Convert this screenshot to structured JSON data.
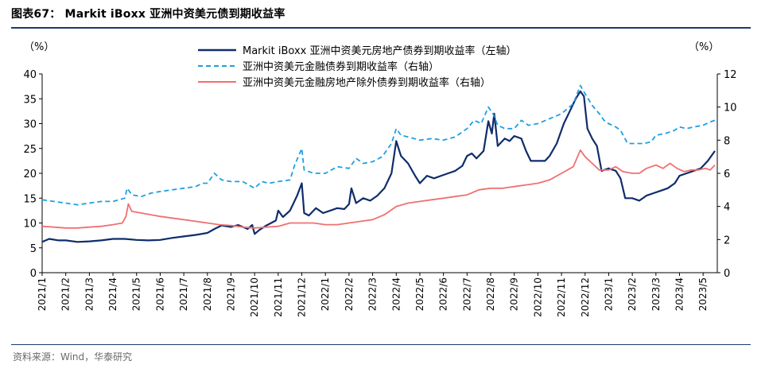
{
  "title": "图表67： Markit iBoxx 亚洲中资美元债到期收益率",
  "source": "资料来源：Wind，华泰研究",
  "chart_data": {
    "type": "line",
    "title": "图表67： Markit iBoxx 亚洲中资美元债到期收益率",
    "left_axis": {
      "unit": "（%）",
      "min": 0,
      "max": 40,
      "ticks": [
        "0",
        "5",
        "10",
        "15",
        "20",
        "25",
        "30",
        "35",
        "40"
      ]
    },
    "right_axis": {
      "unit": "（%）",
      "min": 0,
      "max": 12,
      "ticks": [
        "0",
        "2",
        "4",
        "6",
        "8",
        "10",
        "12"
      ]
    },
    "x_labels": [
      "2021/1",
      "2021/2",
      "2021/3",
      "2021/4",
      "2021/5",
      "2021/6",
      "2021/7",
      "2021/8",
      "2021/9",
      "2021/10",
      "2021/11",
      "2021/12",
      "2022/1",
      "2022/2",
      "2022/3",
      "2022/4",
      "2022/5",
      "2022/6",
      "2022/7",
      "2022/8",
      "2022/9",
      "2022/10",
      "2022/11",
      "2022/12",
      "2023/1",
      "2023/2",
      "2023/3",
      "2023/4",
      "2023/5"
    ],
    "x_range": [
      0,
      28.6
    ],
    "legend_position": "top",
    "series": [
      {
        "name": "Markit iBoxx 亚洲中资美元房地产债券到期收益率（左轴）",
        "axis": "left",
        "color": "#0f2d6b",
        "style": "solid",
        "points": [
          [
            0,
            6.2
          ],
          [
            0.3,
            6.8
          ],
          [
            0.7,
            6.5
          ],
          [
            1,
            6.5
          ],
          [
            1.5,
            6.2
          ],
          [
            2,
            6.3
          ],
          [
            2.5,
            6.5
          ],
          [
            3,
            6.8
          ],
          [
            3.5,
            6.8
          ],
          [
            4,
            6.6
          ],
          [
            4.5,
            6.5
          ],
          [
            5,
            6.6
          ],
          [
            5.5,
            7.0
          ],
          [
            6,
            7.3
          ],
          [
            6.5,
            7.6
          ],
          [
            7,
            8.0
          ],
          [
            7.3,
            8.8
          ],
          [
            7.6,
            9.5
          ],
          [
            8,
            9.2
          ],
          [
            8.3,
            9.6
          ],
          [
            8.7,
            8.8
          ],
          [
            8.9,
            9.6
          ],
          [
            9.0,
            7.8
          ],
          [
            9.2,
            8.6
          ],
          [
            9.5,
            9.5
          ],
          [
            9.9,
            10.5
          ],
          [
            10.0,
            12.5
          ],
          [
            10.2,
            11.2
          ],
          [
            10.5,
            12.5
          ],
          [
            10.8,
            15.5
          ],
          [
            11.0,
            18.0
          ],
          [
            11.1,
            12.0
          ],
          [
            11.3,
            11.5
          ],
          [
            11.6,
            13.0
          ],
          [
            11.9,
            12.0
          ],
          [
            12.2,
            12.5
          ],
          [
            12.5,
            13.0
          ],
          [
            12.8,
            12.8
          ],
          [
            13.0,
            13.8
          ],
          [
            13.1,
            17.0
          ],
          [
            13.3,
            14.0
          ],
          [
            13.6,
            15.0
          ],
          [
            13.9,
            14.5
          ],
          [
            14.2,
            15.5
          ],
          [
            14.5,
            17.0
          ],
          [
            14.8,
            20.0
          ],
          [
            15.0,
            26.5
          ],
          [
            15.2,
            23.5
          ],
          [
            15.5,
            22.0
          ],
          [
            15.8,
            19.5
          ],
          [
            16.0,
            18.0
          ],
          [
            16.3,
            19.5
          ],
          [
            16.6,
            19.0
          ],
          [
            16.9,
            19.5
          ],
          [
            17.2,
            20.0
          ],
          [
            17.5,
            20.5
          ],
          [
            17.8,
            21.5
          ],
          [
            18.0,
            23.5
          ],
          [
            18.2,
            24.0
          ],
          [
            18.4,
            23.0
          ],
          [
            18.7,
            24.5
          ],
          [
            18.9,
            30.5
          ],
          [
            19.05,
            28.0
          ],
          [
            19.15,
            32.0
          ],
          [
            19.3,
            25.5
          ],
          [
            19.6,
            27.0
          ],
          [
            19.8,
            26.5
          ],
          [
            20.0,
            27.5
          ],
          [
            20.3,
            27.0
          ],
          [
            20.5,
            24.5
          ],
          [
            20.7,
            22.5
          ],
          [
            21.0,
            22.5
          ],
          [
            21.3,
            22.5
          ],
          [
            21.5,
            23.5
          ],
          [
            21.8,
            26.0
          ],
          [
            22.1,
            30.0
          ],
          [
            22.4,
            33.0
          ],
          [
            22.6,
            35.0
          ],
          [
            22.8,
            36.5
          ],
          [
            22.95,
            35.5
          ],
          [
            23.1,
            29.0
          ],
          [
            23.3,
            27.0
          ],
          [
            23.5,
            25.5
          ],
          [
            23.7,
            20.5
          ],
          [
            24.0,
            21.0
          ],
          [
            24.3,
            20.5
          ],
          [
            24.5,
            19.0
          ],
          [
            24.7,
            15.0
          ],
          [
            25.0,
            15.0
          ],
          [
            25.3,
            14.5
          ],
          [
            25.6,
            15.5
          ],
          [
            25.9,
            16.0
          ],
          [
            26.2,
            16.5
          ],
          [
            26.5,
            17.0
          ],
          [
            26.8,
            18.0
          ],
          [
            27.0,
            19.5
          ],
          [
            27.3,
            20.0
          ],
          [
            27.6,
            20.5
          ],
          [
            27.9,
            21.0
          ],
          [
            28.2,
            22.5
          ],
          [
            28.5,
            24.5
          ]
        ]
      },
      {
        "name": "亚洲中资美元金融债券到期收益率（右轴）",
        "axis": "right",
        "color": "#1e9fe0",
        "style": "dashed",
        "points": [
          [
            0,
            4.4
          ],
          [
            0.5,
            4.3
          ],
          [
            1,
            4.2
          ],
          [
            1.5,
            4.1
          ],
          [
            2,
            4.2
          ],
          [
            2.5,
            4.3
          ],
          [
            3,
            4.3
          ],
          [
            3.5,
            4.5
          ],
          [
            3.6,
            5.1
          ],
          [
            3.8,
            4.7
          ],
          [
            4.2,
            4.6
          ],
          [
            4.6,
            4.8
          ],
          [
            5,
            4.9
          ],
          [
            5.5,
            5.0
          ],
          [
            6,
            5.1
          ],
          [
            6.5,
            5.2
          ],
          [
            6.8,
            5.4
          ],
          [
            7,
            5.4
          ],
          [
            7.3,
            6.0
          ],
          [
            7.6,
            5.6
          ],
          [
            8,
            5.5
          ],
          [
            8.5,
            5.5
          ],
          [
            9,
            5.1
          ],
          [
            9.3,
            5.5
          ],
          [
            9.6,
            5.4
          ],
          [
            10,
            5.5
          ],
          [
            10.5,
            5.6
          ],
          [
            10.7,
            6.5
          ],
          [
            11,
            7.5
          ],
          [
            11.1,
            6.2
          ],
          [
            11.5,
            6.0
          ],
          [
            12,
            6.0
          ],
          [
            12.5,
            6.4
          ],
          [
            13,
            6.3
          ],
          [
            13.3,
            6.9
          ],
          [
            13.6,
            6.6
          ],
          [
            14,
            6.7
          ],
          [
            14.4,
            7.0
          ],
          [
            14.8,
            7.8
          ],
          [
            15,
            8.7
          ],
          [
            15.2,
            8.3
          ],
          [
            15.5,
            8.2
          ],
          [
            16,
            8.0
          ],
          [
            16.5,
            8.1
          ],
          [
            17,
            8.0
          ],
          [
            17.5,
            8.2
          ],
          [
            18,
            8.7
          ],
          [
            18.3,
            9.2
          ],
          [
            18.6,
            9.0
          ],
          [
            18.9,
            10.0
          ],
          [
            19.1,
            9.6
          ],
          [
            19.3,
            8.9
          ],
          [
            19.6,
            8.7
          ],
          [
            20,
            8.7
          ],
          [
            20.3,
            9.2
          ],
          [
            20.6,
            8.9
          ],
          [
            21,
            9.0
          ],
          [
            21.5,
            9.3
          ],
          [
            22,
            9.6
          ],
          [
            22.5,
            10.2
          ],
          [
            22.8,
            11.3
          ],
          [
            23,
            10.8
          ],
          [
            23.3,
            10.1
          ],
          [
            23.6,
            9.6
          ],
          [
            23.8,
            9.2
          ],
          [
            24,
            9.0
          ],
          [
            24.3,
            8.8
          ],
          [
            24.5,
            8.6
          ],
          [
            24.8,
            7.8
          ],
          [
            25,
            7.8
          ],
          [
            25.5,
            7.8
          ],
          [
            25.8,
            7.9
          ],
          [
            26,
            8.3
          ],
          [
            26.4,
            8.4
          ],
          [
            26.8,
            8.6
          ],
          [
            27,
            8.8
          ],
          [
            27.3,
            8.7
          ],
          [
            27.6,
            8.8
          ],
          [
            28,
            8.9
          ],
          [
            28.3,
            9.1
          ],
          [
            28.5,
            9.2
          ]
        ]
      },
      {
        "name": "亚洲中资美元金融房地产除外债券到期收益率（右轴）",
        "axis": "right",
        "color": "#f07070",
        "style": "solid",
        "points": [
          [
            0,
            2.8
          ],
          [
            0.5,
            2.75
          ],
          [
            1,
            2.7
          ],
          [
            1.5,
            2.7
          ],
          [
            2,
            2.75
          ],
          [
            2.5,
            2.8
          ],
          [
            3,
            2.9
          ],
          [
            3.4,
            3.0
          ],
          [
            3.55,
            3.4
          ],
          [
            3.65,
            4.15
          ],
          [
            3.8,
            3.7
          ],
          [
            4.2,
            3.6
          ],
          [
            4.6,
            3.5
          ],
          [
            5,
            3.4
          ],
          [
            5.5,
            3.3
          ],
          [
            6,
            3.2
          ],
          [
            6.5,
            3.1
          ],
          [
            7,
            3.0
          ],
          [
            7.5,
            2.9
          ],
          [
            8,
            2.85
          ],
          [
            8.5,
            2.75
          ],
          [
            9,
            2.7
          ],
          [
            9.5,
            2.75
          ],
          [
            10,
            2.8
          ],
          [
            10.5,
            3.0
          ],
          [
            11,
            3.0
          ],
          [
            11.5,
            3.0
          ],
          [
            12,
            2.9
          ],
          [
            12.5,
            2.9
          ],
          [
            13,
            3.0
          ],
          [
            13.5,
            3.1
          ],
          [
            14,
            3.2
          ],
          [
            14.5,
            3.5
          ],
          [
            15,
            4.0
          ],
          [
            15.5,
            4.2
          ],
          [
            16,
            4.3
          ],
          [
            16.5,
            4.4
          ],
          [
            17,
            4.5
          ],
          [
            17.5,
            4.6
          ],
          [
            18,
            4.7
          ],
          [
            18.5,
            5.0
          ],
          [
            19,
            5.1
          ],
          [
            19.5,
            5.1
          ],
          [
            20,
            5.2
          ],
          [
            20.5,
            5.3
          ],
          [
            21,
            5.4
          ],
          [
            21.5,
            5.6
          ],
          [
            22,
            6.0
          ],
          [
            22.5,
            6.4
          ],
          [
            22.8,
            7.4
          ],
          [
            23,
            7.0
          ],
          [
            23.3,
            6.6
          ],
          [
            23.6,
            6.2
          ],
          [
            24,
            6.2
          ],
          [
            24.3,
            6.4
          ],
          [
            24.6,
            6.1
          ],
          [
            25,
            6.0
          ],
          [
            25.3,
            6.0
          ],
          [
            25.6,
            6.3
          ],
          [
            26,
            6.5
          ],
          [
            26.3,
            6.3
          ],
          [
            26.6,
            6.6
          ],
          [
            26.9,
            6.3
          ],
          [
            27.2,
            6.1
          ],
          [
            27.5,
            6.2
          ],
          [
            27.8,
            6.2
          ],
          [
            28.1,
            6.3
          ],
          [
            28.3,
            6.2
          ],
          [
            28.5,
            6.5
          ]
        ]
      }
    ]
  }
}
